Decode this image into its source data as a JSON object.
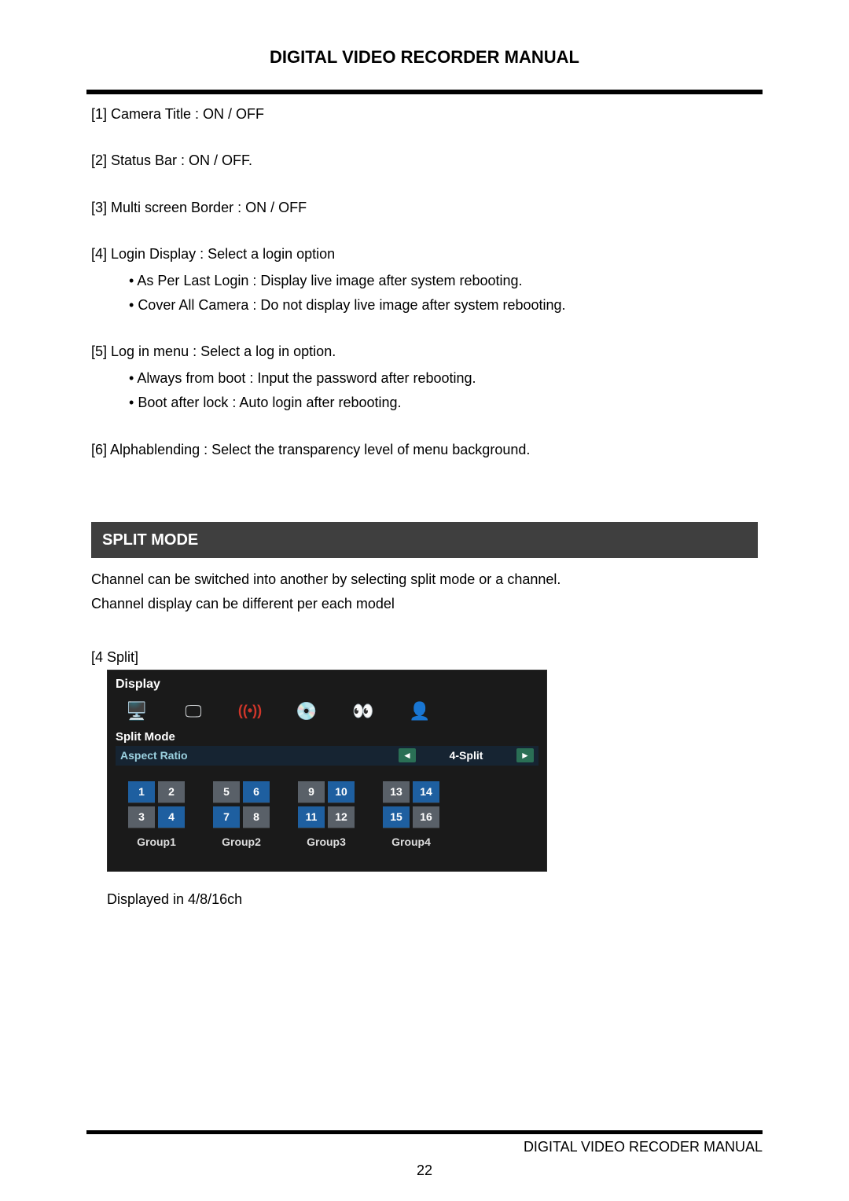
{
  "header": {
    "title": "DIGITAL VIDEO RECORDER MANUAL"
  },
  "items": {
    "i1": "[1] Camera Title : ON / OFF",
    "i2": "[2] Status Bar : ON / OFF.",
    "i3": "[3] Multi screen Border : ON / OFF",
    "i4": "[4] Login Display : Select a login option",
    "i4a": "As Per Last Login : Display live image after system rebooting.",
    "i4b": "Cover All Camera : Do not display live image after system rebooting.",
    "i5": "[5] Log in menu :   Select a log in option.",
    "i5a": "Always from boot : Input the password after rebooting.",
    "i5b": "Boot after lock : Auto login after rebooting.",
    "i6": "[6] Alphablending : Select the transparency level of menu background."
  },
  "section": {
    "title": "SPLIT MODE"
  },
  "intro": {
    "p1": "Channel can be switched into another by selecting split mode or a channel.",
    "p2": "Channel display can be different per each model"
  },
  "figure": {
    "label": "[4 Split]",
    "display_title": "Display",
    "split_mode_label": "Split Mode",
    "aspect_label": "Aspect Ratio",
    "aspect_value": "4-Split",
    "arrow_left": "◄",
    "arrow_right": "►",
    "tabs": {
      "t1_icon": "🖥️",
      "t2_icon": "🖵",
      "t3_icon": "((•))",
      "t4_icon": "💿",
      "t5_icon": "👀",
      "t6_icon": "👤"
    },
    "tab_colors": {
      "c1": "#d85a2a",
      "c2": "#2b6bbf",
      "c3": "#d0362a",
      "c4": "#1f3a63",
      "c5": "#c94b87",
      "c6": "#c9a22e"
    },
    "groups": [
      {
        "cells": [
          "1",
          "2",
          "3",
          "4"
        ],
        "highlight": [
          0,
          3
        ],
        "label": "Group1"
      },
      {
        "cells": [
          "5",
          "6",
          "7",
          "8"
        ],
        "highlight": [
          1,
          2
        ],
        "label": "Group2"
      },
      {
        "cells": [
          "9",
          "10",
          "11",
          "12"
        ],
        "highlight": [
          1,
          2
        ],
        "label": "Group3"
      },
      {
        "cells": [
          "13",
          "14",
          "15",
          "16"
        ],
        "highlight": [
          1,
          2
        ],
        "label": "Group4"
      }
    ]
  },
  "note": "Displayed in 4/8/16ch",
  "footer": {
    "text": "DIGITAL VIDEO RECODER MANUAL",
    "page": "22"
  }
}
